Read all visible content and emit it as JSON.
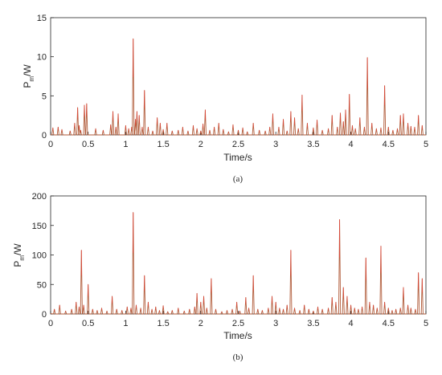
{
  "chart_data": [
    {
      "type": "line",
      "caption": "(a)",
      "xlabel": "Time/s",
      "ylabel_main": "P",
      "ylabel_sub": "m",
      "ylabel_unit": "/W",
      "xlim": [
        0,
        5
      ],
      "ylim": [
        0,
        15
      ],
      "xticks": [
        0,
        0.5,
        1,
        1.5,
        2,
        2.5,
        3,
        3.5,
        4,
        4.5,
        5
      ],
      "yticks": [
        0,
        5,
        10,
        15
      ],
      "xtick_labels": [
        "0",
        "0.5",
        "1",
        "1.5",
        "2",
        "2.5",
        "3",
        "3.5",
        "4",
        "4.5",
        "5"
      ],
      "ytick_labels": [
        "0",
        "5",
        "10",
        "15"
      ],
      "grid": false,
      "line_color": "#b05a38",
      "peak_color": "#e0453a",
      "series": [
        {
          "x": [
            0.03,
            0.1,
            0.15,
            0.26,
            0.32,
            0.36,
            0.38,
            0.4,
            0.45,
            0.48,
            0.6,
            0.7,
            0.8,
            0.83,
            0.87,
            0.9,
            1.0,
            1.04,
            1.08,
            1.1,
            1.13,
            1.15,
            1.18,
            1.22,
            1.25,
            1.3,
            1.36,
            1.42,
            1.46,
            1.5,
            1.55,
            1.62,
            1.7,
            1.76,
            1.83,
            1.9,
            1.95,
            2.0,
            2.03,
            2.06,
            2.12,
            2.18,
            2.24,
            2.3,
            2.37,
            2.43,
            2.5,
            2.56,
            2.62,
            2.7,
            2.78,
            2.86,
            2.92,
            2.96,
            3.04,
            3.1,
            3.15,
            3.2,
            3.25,
            3.3,
            3.35,
            3.42,
            3.5,
            3.55,
            3.62,
            3.7,
            3.75,
            3.82,
            3.86,
            3.9,
            3.93,
            3.98,
            4.02,
            4.06,
            4.12,
            4.18,
            4.22,
            4.28,
            4.34,
            4.4,
            4.45,
            4.5,
            4.56,
            4.62,
            4.66,
            4.7,
            4.76,
            4.8,
            4.85,
            4.9,
            4.95
          ],
          "y": [
            0.9,
            1.0,
            0.7,
            0.5,
            1.5,
            3.5,
            1.2,
            0.6,
            3.8,
            4.0,
            0.8,
            0.6,
            1.3,
            3.0,
            1.0,
            2.7,
            1.2,
            0.8,
            1.0,
            12.3,
            2.0,
            3.0,
            2.5,
            1.0,
            5.7,
            1.0,
            0.5,
            2.2,
            1.5,
            0.7,
            1.5,
            0.5,
            0.6,
            1.0,
            0.5,
            1.2,
            0.8,
            0.5,
            1.4,
            3.2,
            0.6,
            1.0,
            1.5,
            0.7,
            0.4,
            1.3,
            0.6,
            0.9,
            0.4,
            1.5,
            0.6,
            0.5,
            1.0,
            2.7,
            1.0,
            2.0,
            0.5,
            3.0,
            2.2,
            0.8,
            5.1,
            1.5,
            0.9,
            1.9,
            0.6,
            0.8,
            2.5,
            1.0,
            2.8,
            1.7,
            3.2,
            5.2,
            1.2,
            0.8,
            2.2,
            1.0,
            9.9,
            1.5,
            0.8,
            0.9,
            6.3,
            1.0,
            0.6,
            0.8,
            2.5,
            2.7,
            1.5,
            1.1,
            1.0,
            2.5,
            1.2
          ]
        }
      ]
    },
    {
      "type": "line",
      "caption": "(b)",
      "xlabel": "Time/s",
      "ylabel_main": "P",
      "ylabel_sub": "m",
      "ylabel_unit": "/W",
      "xlim": [
        0,
        5
      ],
      "ylim": [
        0,
        200
      ],
      "xticks": [
        0,
        0.5,
        1,
        1.5,
        2,
        2.5,
        3,
        3.5,
        4,
        4.5,
        5
      ],
      "yticks": [
        0,
        50,
        100,
        150,
        200
      ],
      "xtick_labels": [
        "0",
        "0.5",
        "1",
        "1.5",
        "2",
        "2.5",
        "3",
        "3.5",
        "4",
        "4.5",
        "5"
      ],
      "ytick_labels": [
        "0",
        "50",
        "100",
        "150",
        "200"
      ],
      "grid": false,
      "line_color": "#b05a38",
      "peak_color": "#e0453a",
      "series": [
        {
          "x": [
            0.05,
            0.12,
            0.2,
            0.28,
            0.34,
            0.38,
            0.41,
            0.44,
            0.5,
            0.56,
            0.62,
            0.68,
            0.75,
            0.82,
            0.88,
            0.95,
            1.02,
            1.07,
            1.1,
            1.14,
            1.2,
            1.25,
            1.3,
            1.35,
            1.4,
            1.45,
            1.5,
            1.56,
            1.62,
            1.7,
            1.78,
            1.85,
            1.92,
            1.95,
            2.0,
            2.04,
            2.08,
            2.14,
            2.2,
            2.28,
            2.35,
            2.42,
            2.48,
            2.52,
            2.6,
            2.64,
            2.7,
            2.76,
            2.82,
            2.9,
            2.95,
            3.0,
            3.05,
            3.1,
            3.15,
            3.2,
            3.25,
            3.32,
            3.38,
            3.44,
            3.5,
            3.56,
            3.62,
            3.7,
            3.75,
            3.8,
            3.85,
            3.9,
            3.95,
            4.0,
            4.05,
            4.1,
            4.15,
            4.2,
            4.25,
            4.3,
            4.35,
            4.4,
            4.45,
            4.5,
            4.55,
            4.6,
            4.66,
            4.7,
            4.76,
            4.8,
            4.86,
            4.9,
            4.95
          ],
          "y": [
            8,
            15,
            5,
            8,
            20,
            12,
            108,
            15,
            50,
            8,
            6,
            10,
            5,
            30,
            8,
            6,
            12,
            10,
            172,
            15,
            10,
            65,
            20,
            8,
            12,
            6,
            14,
            4,
            6,
            10,
            5,
            8,
            12,
            35,
            20,
            30,
            10,
            60,
            8,
            4,
            6,
            8,
            20,
            5,
            28,
            10,
            65,
            8,
            6,
            10,
            30,
            20,
            10,
            8,
            15,
            108,
            10,
            6,
            15,
            8,
            5,
            12,
            8,
            10,
            28,
            20,
            160,
            45,
            30,
            15,
            10,
            8,
            12,
            95,
            20,
            15,
            10,
            115,
            20,
            10,
            6,
            8,
            10,
            45,
            15,
            10,
            8,
            70,
            60
          ]
        }
      ]
    }
  ]
}
